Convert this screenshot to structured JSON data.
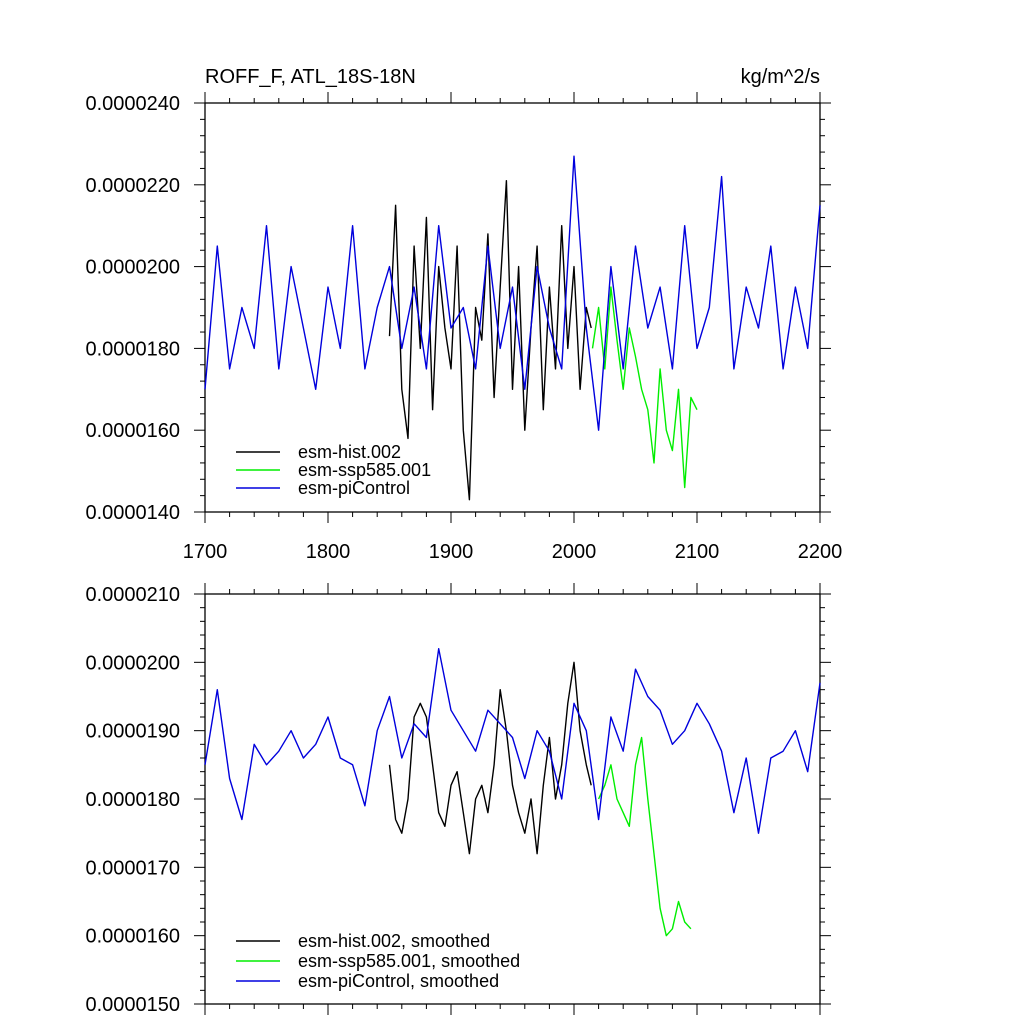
{
  "chart_data": [
    {
      "type": "line",
      "title": "ROFF_F, ATL_18S-18N",
      "units": "kg/m^2/s",
      "xlim": [
        1700,
        2200
      ],
      "ylim": [
        1.4e-05,
        2.4e-05
      ],
      "x_ticks": [
        1700,
        1800,
        1900,
        2000,
        2100,
        2200
      ],
      "x_tick_labels": [
        "1700",
        "1800",
        "1900",
        "2000",
        "2100",
        "2200"
      ],
      "y_ticks": [
        1.4e-05,
        1.6e-05,
        1.8e-05,
        2e-05,
        2.2e-05,
        2.4e-05
      ],
      "y_tick_labels": [
        "0.0000140",
        "0.0000160",
        "0.0000180",
        "0.0000200",
        "0.0000220",
        "0.0000240"
      ],
      "legend": [
        "esm-hist.002",
        "esm-ssp585.001",
        "esm-piControl"
      ],
      "legend_placement": "bottom-left",
      "series": [
        {
          "name": "esm-hist.002",
          "color": "#000000",
          "x": [
            1850,
            1855,
            1860,
            1865,
            1870,
            1875,
            1880,
            1885,
            1890,
            1895,
            1900,
            1905,
            1910,
            1915,
            1920,
            1925,
            1930,
            1935,
            1940,
            1945,
            1950,
            1955,
            1960,
            1965,
            1970,
            1975,
            1980,
            1985,
            1990,
            1995,
            2000,
            2005,
            2010,
            2014
          ],
          "values": [
            1.83e-05,
            2.15e-05,
            1.7e-05,
            1.58e-05,
            2.05e-05,
            1.8e-05,
            2.12e-05,
            1.65e-05,
            2e-05,
            1.85e-05,
            1.75e-05,
            2.05e-05,
            1.6e-05,
            1.43e-05,
            1.9e-05,
            1.82e-05,
            2.08e-05,
            1.68e-05,
            1.95e-05,
            2.21e-05,
            1.7e-05,
            2e-05,
            1.6e-05,
            1.85e-05,
            2.05e-05,
            1.65e-05,
            1.95e-05,
            1.75e-05,
            2.1e-05,
            1.8e-05,
            2e-05,
            1.7e-05,
            1.9e-05,
            1.85e-05
          ]
        },
        {
          "name": "esm-ssp585.001",
          "color": "#00ee00",
          "x": [
            2015,
            2020,
            2025,
            2030,
            2035,
            2040,
            2045,
            2050,
            2055,
            2060,
            2065,
            2070,
            2075,
            2080,
            2085,
            2090,
            2095,
            2100
          ],
          "values": [
            1.8e-05,
            1.9e-05,
            1.75e-05,
            1.95e-05,
            1.82e-05,
            1.7e-05,
            1.85e-05,
            1.78e-05,
            1.7e-05,
            1.65e-05,
            1.52e-05,
            1.75e-05,
            1.6e-05,
            1.55e-05,
            1.7e-05,
            1.46e-05,
            1.68e-05,
            1.65e-05
          ]
        },
        {
          "name": "esm-piControl",
          "color": "#0000dd",
          "x": [
            1700,
            1710,
            1720,
            1730,
            1740,
            1750,
            1760,
            1770,
            1780,
            1790,
            1800,
            1810,
            1820,
            1830,
            1840,
            1850,
            1860,
            1870,
            1880,
            1890,
            1900,
            1910,
            1920,
            1930,
            1940,
            1950,
            1960,
            1970,
            1980,
            1990,
            2000,
            2010,
            2020,
            2030,
            2040,
            2050,
            2060,
            2070,
            2080,
            2090,
            2100,
            2110,
            2120,
            2130,
            2140,
            2150,
            2160,
            2170,
            2180,
            2190,
            2200
          ],
          "values": [
            1.7e-05,
            2.05e-05,
            1.75e-05,
            1.9e-05,
            1.8e-05,
            2.1e-05,
            1.75e-05,
            2e-05,
            1.85e-05,
            1.7e-05,
            1.95e-05,
            1.8e-05,
            2.1e-05,
            1.75e-05,
            1.9e-05,
            2e-05,
            1.8e-05,
            1.95e-05,
            1.75e-05,
            2.1e-05,
            1.85e-05,
            1.9e-05,
            1.75e-05,
            2.05e-05,
            1.8e-05,
            1.95e-05,
            1.7e-05,
            2e-05,
            1.85e-05,
            1.75e-05,
            2.27e-05,
            1.85e-05,
            1.6e-05,
            2e-05,
            1.75e-05,
            2.05e-05,
            1.85e-05,
            1.95e-05,
            1.75e-05,
            2.1e-05,
            1.8e-05,
            1.9e-05,
            2.22e-05,
            1.75e-05,
            1.95e-05,
            1.85e-05,
            2.05e-05,
            1.75e-05,
            1.95e-05,
            1.8e-05,
            2.15e-05
          ]
        }
      ]
    },
    {
      "type": "line",
      "title": "",
      "xlim": [
        1700,
        2200
      ],
      "ylim": [
        1.5e-05,
        2.1e-05
      ],
      "x_ticks": [
        1700,
        1800,
        1900,
        2000,
        2100,
        2200
      ],
      "y_ticks": [
        1.5e-05,
        1.6e-05,
        1.7e-05,
        1.8e-05,
        1.9e-05,
        2e-05,
        2.1e-05
      ],
      "y_tick_labels": [
        "0.0000150",
        "0.0000160",
        "0.0000170",
        "0.0000180",
        "0.0000190",
        "0.0000200",
        "0.0000210"
      ],
      "legend": [
        "esm-hist.002, smoothed",
        "esm-ssp585.001, smoothed",
        "esm-piControl, smoothed"
      ],
      "legend_placement": "bottom-left",
      "series": [
        {
          "name": "esm-hist.002, smoothed",
          "color": "#000000",
          "x": [
            1850,
            1855,
            1860,
            1865,
            1870,
            1875,
            1880,
            1885,
            1890,
            1895,
            1900,
            1905,
            1910,
            1915,
            1920,
            1925,
            1930,
            1935,
            1940,
            1945,
            1950,
            1955,
            1960,
            1965,
            1970,
            1975,
            1980,
            1985,
            1990,
            1995,
            2000,
            2005,
            2010,
            2014
          ],
          "values": [
            1.85e-05,
            1.77e-05,
            1.75e-05,
            1.8e-05,
            1.92e-05,
            1.94e-05,
            1.92e-05,
            1.85e-05,
            1.78e-05,
            1.76e-05,
            1.82e-05,
            1.84e-05,
            1.78e-05,
            1.72e-05,
            1.8e-05,
            1.82e-05,
            1.78e-05,
            1.85e-05,
            1.96e-05,
            1.9e-05,
            1.82e-05,
            1.78e-05,
            1.75e-05,
            1.8e-05,
            1.72e-05,
            1.82e-05,
            1.89e-05,
            1.8e-05,
            1.85e-05,
            1.94e-05,
            2e-05,
            1.9e-05,
            1.85e-05,
            1.82e-05
          ]
        },
        {
          "name": "esm-ssp585.001, smoothed",
          "color": "#00ee00",
          "x": [
            2020,
            2025,
            2030,
            2035,
            2040,
            2045,
            2050,
            2055,
            2060,
            2065,
            2070,
            2075,
            2080,
            2085,
            2090,
            2095
          ],
          "values": [
            1.8e-05,
            1.82e-05,
            1.85e-05,
            1.8e-05,
            1.78e-05,
            1.76e-05,
            1.85e-05,
            1.89e-05,
            1.8e-05,
            1.72e-05,
            1.64e-05,
            1.6e-05,
            1.61e-05,
            1.65e-05,
            1.62e-05,
            1.61e-05
          ]
        },
        {
          "name": "esm-piControl, smoothed",
          "color": "#0000dd",
          "x": [
            1700,
            1710,
            1720,
            1730,
            1740,
            1750,
            1760,
            1770,
            1780,
            1790,
            1800,
            1810,
            1820,
            1830,
            1840,
            1850,
            1860,
            1870,
            1880,
            1890,
            1900,
            1910,
            1920,
            1930,
            1940,
            1950,
            1960,
            1970,
            1980,
            1990,
            2000,
            2010,
            2020,
            2030,
            2040,
            2050,
            2060,
            2070,
            2080,
            2090,
            2100,
            2110,
            2120,
            2130,
            2140,
            2150,
            2160,
            2170,
            2180,
            2190,
            2200
          ],
          "values": [
            1.85e-05,
            1.96e-05,
            1.83e-05,
            1.77e-05,
            1.88e-05,
            1.85e-05,
            1.87e-05,
            1.9e-05,
            1.86e-05,
            1.88e-05,
            1.92e-05,
            1.86e-05,
            1.85e-05,
            1.79e-05,
            1.9e-05,
            1.95e-05,
            1.86e-05,
            1.91e-05,
            1.89e-05,
            2.02e-05,
            1.93e-05,
            1.9e-05,
            1.87e-05,
            1.93e-05,
            1.91e-05,
            1.89e-05,
            1.83e-05,
            1.9e-05,
            1.87e-05,
            1.8e-05,
            1.94e-05,
            1.9e-05,
            1.77e-05,
            1.92e-05,
            1.87e-05,
            1.99e-05,
            1.95e-05,
            1.93e-05,
            1.88e-05,
            1.9e-05,
            1.94e-05,
            1.91e-05,
            1.87e-05,
            1.78e-05,
            1.86e-05,
            1.75e-05,
            1.86e-05,
            1.87e-05,
            1.9e-05,
            1.84e-05,
            1.97e-05
          ]
        }
      ]
    }
  ]
}
